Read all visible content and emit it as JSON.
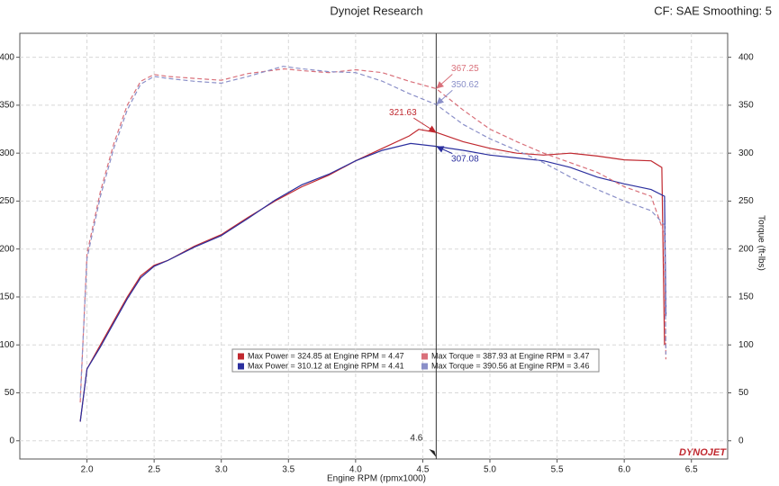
{
  "chart_data": {
    "type": "line",
    "title": "Dynojet Research",
    "subtitle": "CF: SAE Smoothing: 5",
    "x_label": "Engine RPM (rpmx1000)",
    "y2_label": "Torque (ft-lbs)",
    "logo": "DYNOJET",
    "xlim": [
      1.5,
      6.77
    ],
    "xticks": [
      {
        "value": 2,
        "label": "2.0"
      },
      2.5,
      {
        "value": 3,
        "label": "3.0"
      },
      3.5,
      {
        "value": 4,
        "label": "4.0"
      },
      4.5,
      {
        "value": 5,
        "label": "5.0"
      },
      5.5,
      {
        "value": 6,
        "label": "6.0"
      },
      6.5
    ],
    "ylim": [
      -19,
      425
    ],
    "yticks": [
      0,
      50,
      100,
      150,
      200,
      250,
      300,
      350,
      400
    ],
    "y2lim": [
      -19,
      425
    ],
    "y2ticks": [
      0,
      50,
      100,
      150,
      200,
      250,
      300,
      350,
      400
    ],
    "grid": true,
    "legend_position": "bottom",
    "series": [
      {
        "name": "Max Power = 324.85 at Engine RPM = 4.47",
        "color": "#c0282f",
        "dashed": false,
        "x": [
          1.95,
          2.0,
          2.1,
          2.2,
          2.3,
          2.4,
          2.5,
          2.6,
          2.8,
          3.0,
          3.2,
          3.4,
          3.6,
          3.8,
          4.0,
          4.2,
          4.4,
          4.47,
          4.6,
          4.8,
          5.0,
          5.2,
          5.4,
          5.6,
          5.8,
          6.0,
          6.2,
          6.28,
          6.3
        ],
        "values": [
          20,
          75,
          100,
          125,
          150,
          172,
          183,
          188,
          203,
          215,
          233,
          250,
          265,
          277,
          292,
          305,
          318,
          324.85,
          321.63,
          312,
          305,
          300,
          298,
          300,
          297,
          293,
          292,
          285,
          100
        ]
      },
      {
        "name": "Max Power = 310.12 at Engine RPM = 4.41",
        "color": "#2b2f9e",
        "dashed": false,
        "x": [
          1.95,
          2.0,
          2.1,
          2.2,
          2.3,
          2.4,
          2.5,
          2.6,
          2.8,
          3.0,
          3.2,
          3.4,
          3.6,
          3.8,
          4.0,
          4.2,
          4.41,
          4.6,
          4.8,
          5.0,
          5.2,
          5.4,
          5.6,
          5.8,
          6.0,
          6.2,
          6.3,
          6.31
        ],
        "values": [
          20,
          75,
          98,
          123,
          148,
          170,
          182,
          188,
          202,
          214,
          232,
          251,
          267,
          278,
          292,
          303,
          310.12,
          307.08,
          303,
          298,
          295,
          292,
          285,
          275,
          268,
          262,
          255,
          130
        ]
      },
      {
        "name": "Max Torque = 387.93 at Engine RPM = 3.47",
        "color": "#d9707a",
        "dashed": true,
        "x": [
          1.95,
          2.0,
          2.1,
          2.2,
          2.3,
          2.4,
          2.5,
          2.6,
          2.8,
          3.0,
          3.2,
          3.47,
          3.6,
          3.8,
          4.0,
          4.2,
          4.4,
          4.6,
          4.8,
          5.0,
          5.2,
          5.4,
          5.6,
          5.8,
          6.0,
          6.2,
          6.3,
          6.31
        ],
        "values": [
          40,
          195,
          260,
          310,
          350,
          375,
          382,
          380,
          378,
          376,
          383,
          387.93,
          386,
          384,
          387,
          384,
          375,
          367.25,
          345,
          325,
          312,
          300,
          290,
          280,
          265,
          255,
          215,
          85
        ]
      },
      {
        "name": "Max Torque = 390.56 at Engine RPM = 3.46",
        "color": "#8a8fc8",
        "dashed": true,
        "x": [
          1.95,
          2.0,
          2.1,
          2.2,
          2.3,
          2.4,
          2.5,
          2.6,
          2.8,
          3.0,
          3.2,
          3.46,
          3.6,
          3.8,
          4.0,
          4.2,
          4.4,
          4.6,
          4.8,
          5.0,
          5.2,
          5.4,
          5.6,
          5.8,
          6.0,
          6.2,
          6.3,
          6.31
        ],
        "values": [
          45,
          190,
          255,
          305,
          345,
          372,
          380,
          378,
          375,
          373,
          380,
          390.56,
          388,
          385,
          384,
          375,
          362,
          350.62,
          330,
          315,
          303,
          290,
          275,
          262,
          250,
          240,
          225,
          90
        ]
      }
    ],
    "cursor": {
      "x": 4.6
    },
    "annotations": [
      {
        "x": 4.6,
        "y": 367.25,
        "color": "#d9707a"
      },
      {
        "x": 4.6,
        "y": 350.62,
        "color": "#8a8fc8"
      },
      {
        "x": 4.6,
        "y": 321.63,
        "color": "#c0282f"
      },
      {
        "x": 4.6,
        "y": 307.08,
        "color": "#2b2f9e"
      }
    ]
  }
}
